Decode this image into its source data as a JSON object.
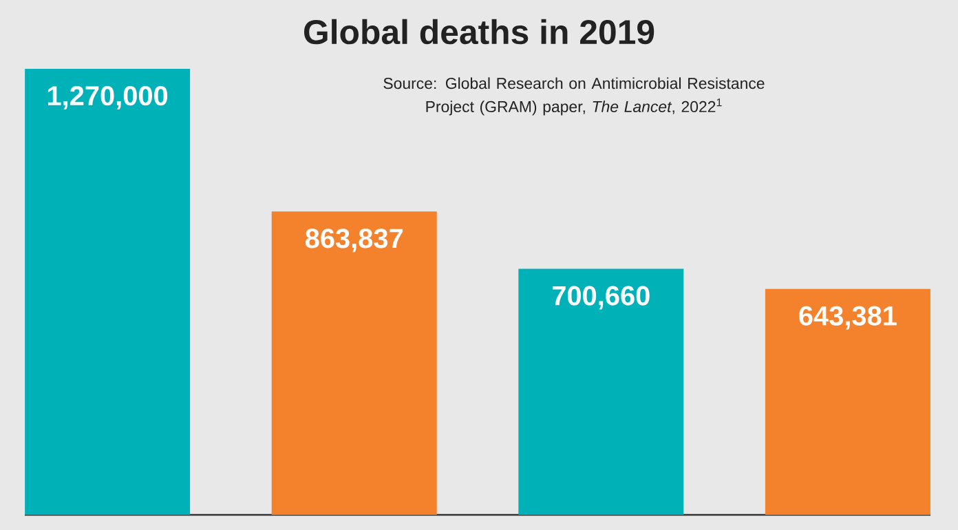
{
  "chart_data": {
    "type": "bar",
    "title": "Global deaths in 2019",
    "subtitle": "Source: Global Research on Antimicrobial Resistance Project (GRAM) paper, *The Lancet*, 2022$^{1}$",
    "categories": [
      null,
      null,
      null,
      null
    ],
    "values": [
      1270000,
      863837,
      700660,
      643381
    ],
    "colors": [
      "#00b2b8",
      "#f4812c",
      "#00b2b8",
      "#f4812c"
    ],
    "data_labels": true,
    "value_labels": [
      "1,270,000",
      "863,837",
      "700,660",
      "643,381"
    ]
  }
}
